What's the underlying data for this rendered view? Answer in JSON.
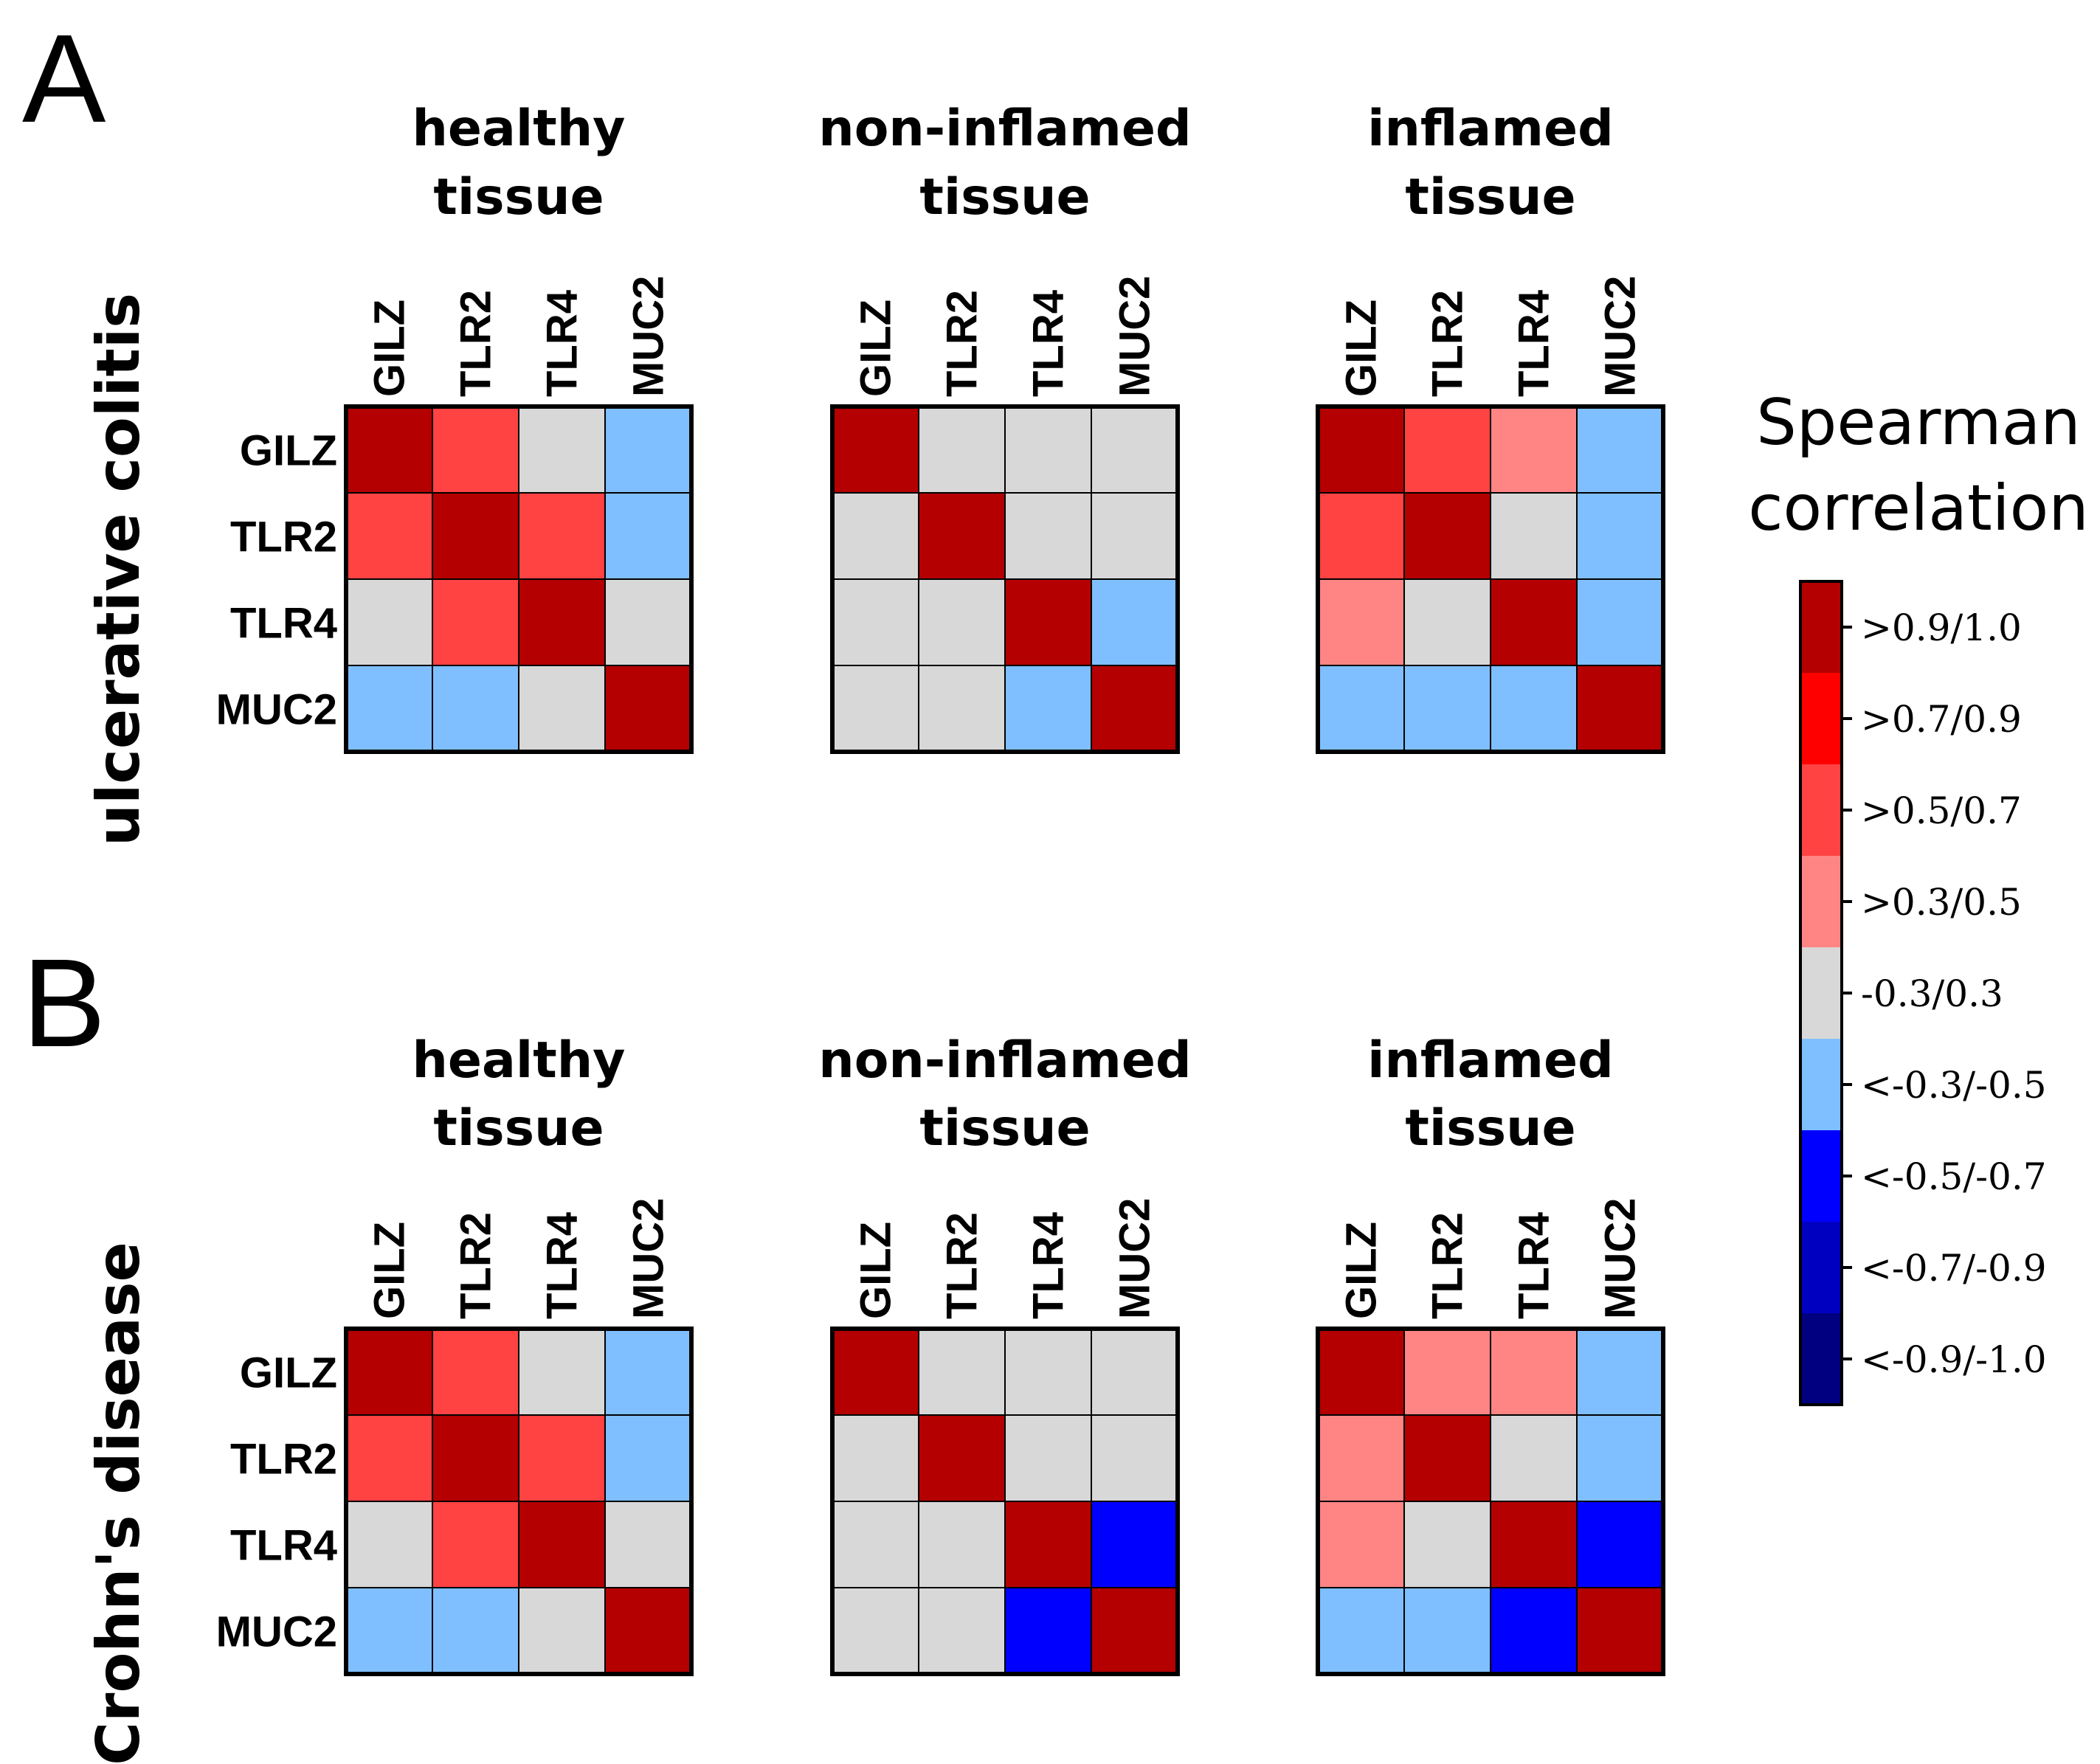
{
  "chart_data": {
    "type": "heatmap",
    "genes": [
      "GILZ",
      "TLR2",
      "TLR4",
      "MUC2"
    ],
    "legend": {
      "title_lines": [
        "Spearman",
        "correlation"
      ],
      "bins": [
        {
          "label": ">0.9/1.0",
          "color": "#b40000"
        },
        {
          "label": ">0.7/0.9",
          "color": "#ff0000"
        },
        {
          "label": ">0.5/0.7",
          "color": "#ff4242"
        },
        {
          "label": ">0.3/0.5",
          "color": "#ff8585"
        },
        {
          "label": "-0.3/0.3",
          "color": "#d8d8d8"
        },
        {
          "label": "<-0.3/-0.5",
          "color": "#7fbfff"
        },
        {
          "label": "<-0.5/-0.7",
          "color": "#0000ff"
        },
        {
          "label": "<-0.7/-0.9",
          "color": "#0000c0"
        },
        {
          "label": "<-0.9/-1.0",
          "color": "#000080"
        }
      ]
    },
    "panels": [
      {
        "letter": "A",
        "disease": "ulcerative colitis",
        "heatmaps": [
          {
            "title_lines": [
              "healthy",
              "tissue"
            ],
            "matrix": [
              [
                0,
                2,
                4,
                5
              ],
              [
                2,
                0,
                2,
                5
              ],
              [
                4,
                2,
                0,
                4
              ],
              [
                5,
                5,
                4,
                0
              ]
            ]
          },
          {
            "title_lines": [
              "non-inflamed",
              "tissue"
            ],
            "matrix": [
              [
                0,
                4,
                4,
                4
              ],
              [
                4,
                0,
                4,
                4
              ],
              [
                4,
                4,
                0,
                5
              ],
              [
                4,
                4,
                5,
                0
              ]
            ]
          },
          {
            "title_lines": [
              "inflamed",
              "tissue"
            ],
            "matrix": [
              [
                0,
                2,
                3,
                5
              ],
              [
                2,
                0,
                4,
                5
              ],
              [
                3,
                4,
                0,
                5
              ],
              [
                5,
                5,
                5,
                0
              ]
            ]
          }
        ]
      },
      {
        "letter": "B",
        "disease": "Crohn's disease",
        "heatmaps": [
          {
            "title_lines": [
              "healthy",
              "tissue"
            ],
            "matrix": [
              [
                0,
                2,
                4,
                5
              ],
              [
                2,
                0,
                2,
                5
              ],
              [
                4,
                2,
                0,
                4
              ],
              [
                5,
                5,
                4,
                0
              ]
            ]
          },
          {
            "title_lines": [
              "non-inflamed",
              "tissue"
            ],
            "matrix": [
              [
                0,
                4,
                4,
                4
              ],
              [
                4,
                0,
                4,
                4
              ],
              [
                4,
                4,
                0,
                6
              ],
              [
                4,
                4,
                6,
                0
              ]
            ]
          },
          {
            "title_lines": [
              "inflamed",
              "tissue"
            ],
            "matrix": [
              [
                0,
                3,
                3,
                5
              ],
              [
                3,
                0,
                4,
                5
              ],
              [
                3,
                4,
                0,
                6
              ],
              [
                5,
                5,
                6,
                0
              ]
            ]
          }
        ]
      }
    ]
  }
}
